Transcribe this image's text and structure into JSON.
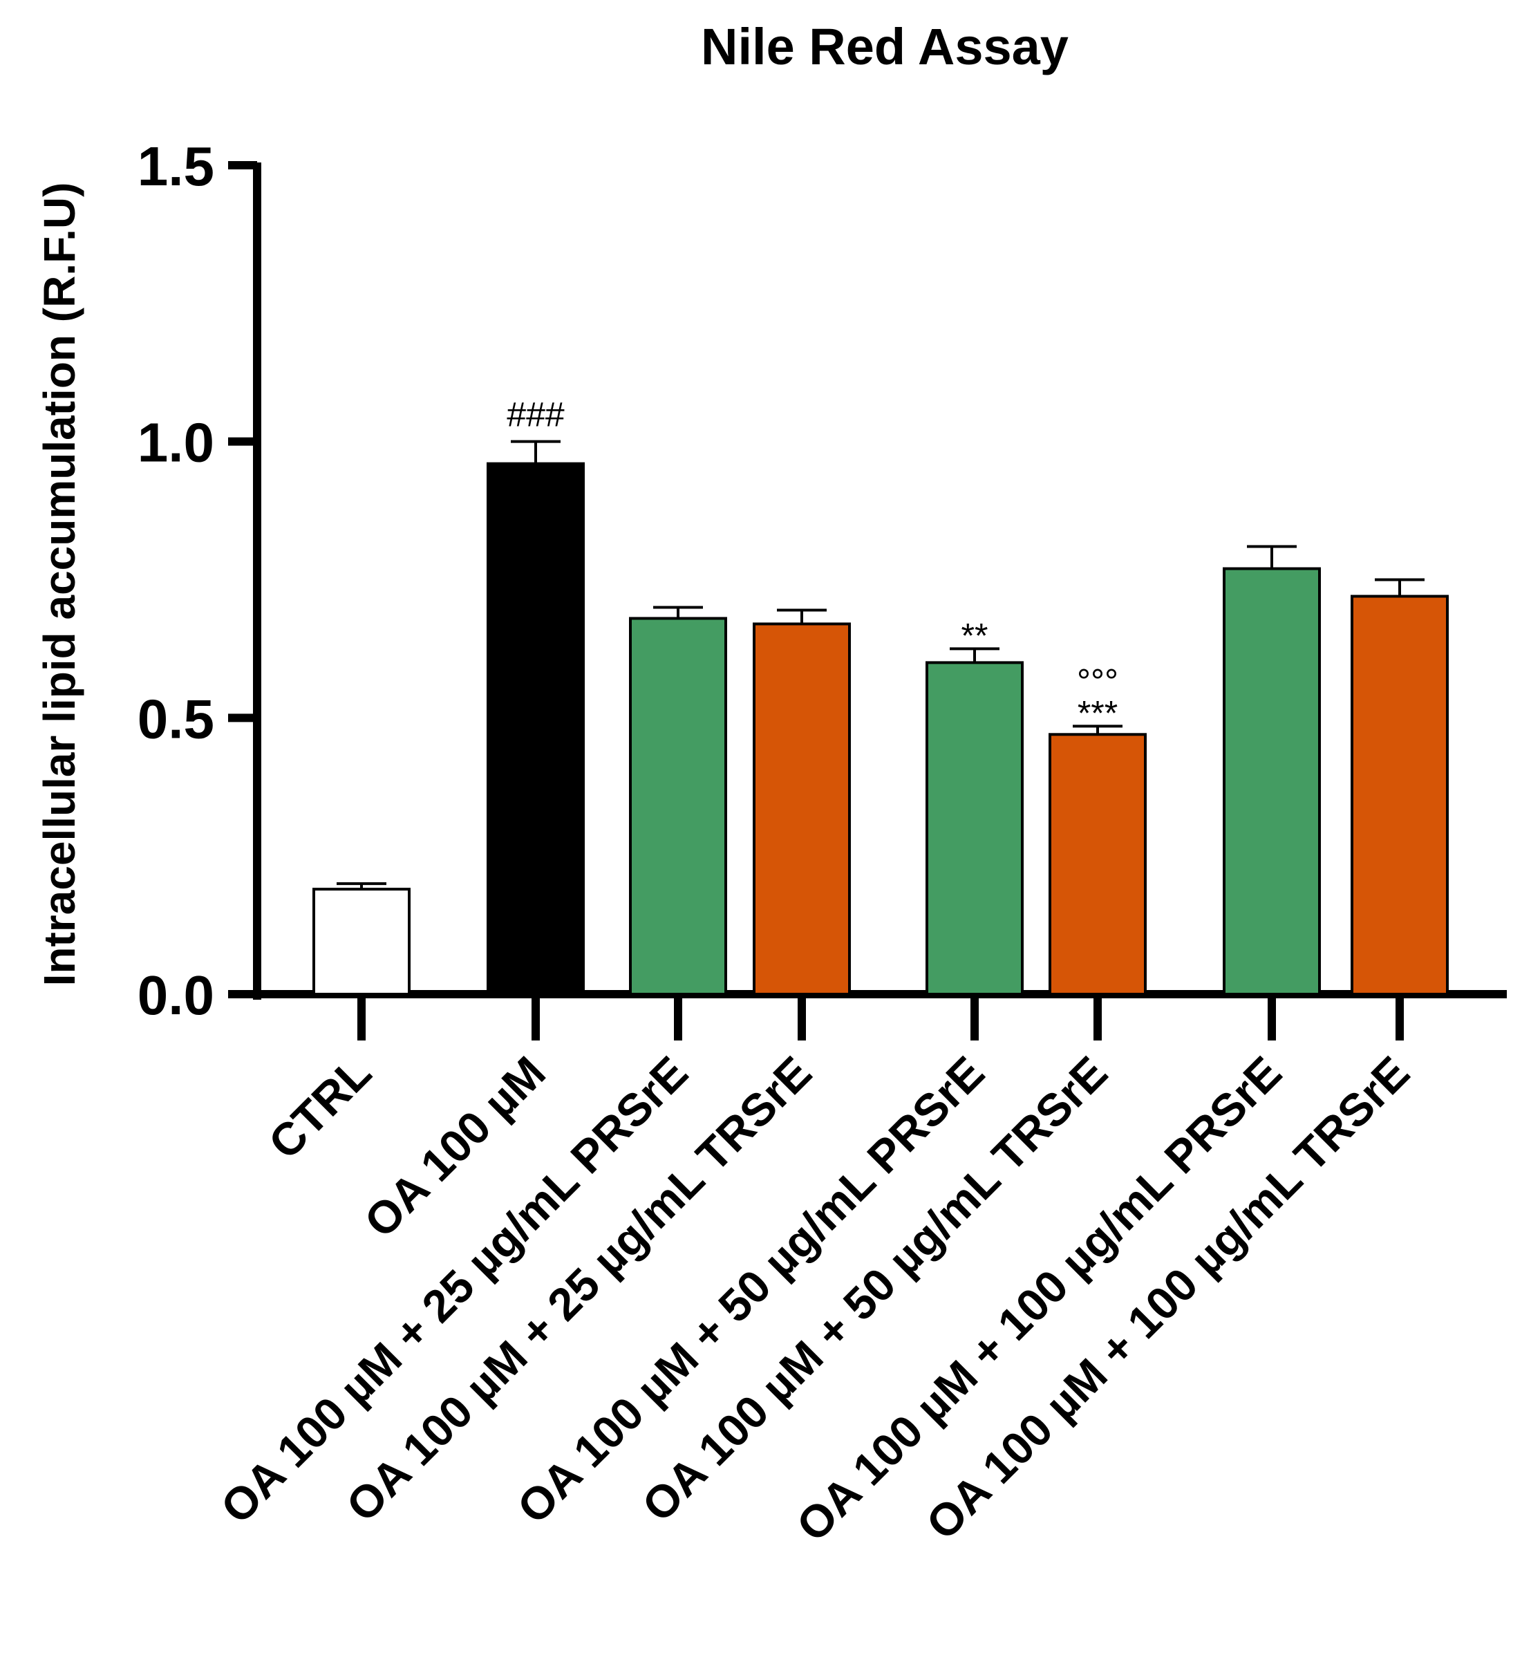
{
  "chart_data": {
    "type": "bar",
    "title": "Nile Red Assay",
    "xlabel": "",
    "ylabel": "Intracellular lipid accumulation (R.F.U)",
    "ylim": [
      0,
      1.5
    ],
    "yticks": [
      "0.0",
      "0.5",
      "1.0",
      "1.5"
    ],
    "grid": false,
    "categories": [
      "CTRL",
      "OA 100 µM",
      "OA 100 µM  + 25 µg/mL PRSrE",
      "OA 100 µM + 25 µg/mL TRSrE",
      "OA 100 µM  + 50 µg/mL PRSrE",
      "OA 100 µM + 50 µg/mL TRSrE",
      "OA 100 µM + 100 µg/mL PRSrE",
      "OA 100 µM + 100 µg/mL TRSrE"
    ],
    "values": [
      0.19,
      0.96,
      0.68,
      0.67,
      0.6,
      0.47,
      0.77,
      0.72
    ],
    "errors": [
      0.01,
      0.04,
      0.02,
      0.025,
      0.025,
      0.015,
      0.04,
      0.03
    ],
    "annotations": [
      "",
      "###",
      "",
      "",
      "**",
      "***",
      "",
      ""
    ],
    "annotations_top": [
      "",
      "",
      "",
      "",
      "",
      "°°°",
      "",
      ""
    ],
    "colors": [
      "#ffffff",
      "#000000",
      "#449c62",
      "#d65506",
      "#449c62",
      "#d65506",
      "#449c62",
      "#d65506"
    ]
  }
}
